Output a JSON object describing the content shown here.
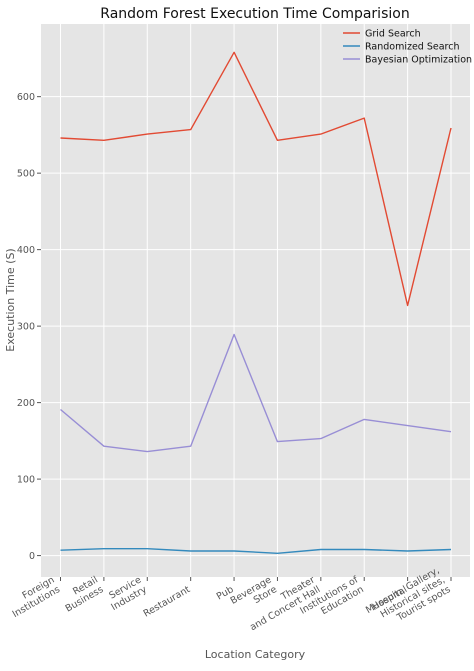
{
  "chart_data": {
    "type": "line",
    "title": "Random Forest Execution Time Comparision",
    "xlabel": "Location Category",
    "ylabel": "Execution Time (S)",
    "ylim": [
      -28,
      695
    ],
    "yticks": [
      0,
      100,
      200,
      300,
      400,
      500,
      600
    ],
    "grid": true,
    "legend_position": "top-right",
    "categories": [
      [
        "Foreign",
        "Institutions"
      ],
      [
        "Retail",
        "Business"
      ],
      [
        "Service",
        "Industry"
      ],
      [
        "Restaurant"
      ],
      [
        "Pub"
      ],
      [
        "Beverage",
        "Store"
      ],
      [
        "Theater",
        "and Concert Hall"
      ],
      [
        "Institutions of",
        "Education"
      ],
      [
        "Hospital"
      ],
      [
        "Museum, Gallery,",
        "Historical sites,",
        "Tourist spots"
      ]
    ],
    "series": [
      {
        "name": "Grid Search",
        "color": "#E24A33",
        "values": [
          546,
          543,
          551,
          557,
          658,
          543,
          551,
          572,
          327,
          559
        ]
      },
      {
        "name": "Randomized Search",
        "color": "#348ABD",
        "values": [
          7,
          9,
          9,
          6,
          6,
          3,
          8,
          8,
          6,
          8
        ]
      },
      {
        "name": "Bayesian Optimization",
        "color": "#988ED5",
        "values": [
          191,
          143,
          136,
          143,
          289,
          149,
          153,
          178,
          170,
          162
        ]
      }
    ]
  }
}
